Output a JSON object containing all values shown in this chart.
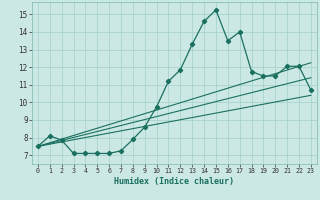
{
  "xlabel": "Humidex (Indice chaleur)",
  "background_color": "#cce8e4",
  "grid_color": "#aad4ce",
  "line_color": "#1a7060",
  "xlim": [
    -0.5,
    23.5
  ],
  "ylim": [
    6.5,
    15.7
  ],
  "yticks": [
    7,
    8,
    9,
    10,
    11,
    12,
    13,
    14,
    15
  ],
  "xticks": [
    0,
    1,
    2,
    3,
    4,
    5,
    6,
    7,
    8,
    9,
    10,
    11,
    12,
    13,
    14,
    15,
    16,
    17,
    18,
    19,
    20,
    21,
    22,
    23
  ],
  "main_curve_x": [
    0,
    1,
    2,
    3,
    4,
    5,
    6,
    7,
    8,
    9,
    10,
    11,
    12,
    13,
    14,
    15,
    16,
    17,
    18,
    19,
    20,
    21,
    22,
    23
  ],
  "main_curve_y": [
    7.5,
    8.1,
    7.85,
    7.1,
    7.1,
    7.1,
    7.1,
    7.25,
    7.9,
    8.6,
    9.75,
    11.2,
    11.85,
    13.3,
    14.6,
    15.25,
    13.5,
    14.0,
    11.75,
    11.5,
    11.5,
    12.05,
    12.05,
    10.7
  ],
  "line1_x": [
    0,
    23
  ],
  "line1_y": [
    7.5,
    10.4
  ],
  "line2_x": [
    0,
    23
  ],
  "line2_y": [
    7.5,
    11.4
  ],
  "line3_x": [
    0,
    23
  ],
  "line3_y": [
    7.5,
    12.25
  ]
}
